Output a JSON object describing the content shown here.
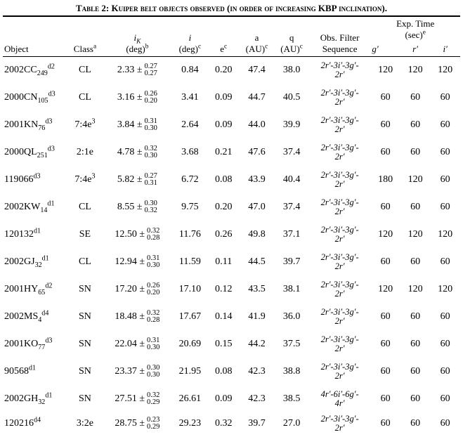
{
  "caption": "Table 2: Kuiper belt objects observed (in order of increasing KBP inclination).",
  "header": {
    "object": "Object",
    "class": "Class",
    "class_sup": "a",
    "ik_label": "i",
    "ik_sub": "K",
    "ik_unit": "(deg)",
    "ik_unit_sup": "b",
    "i_label": "i",
    "i_unit": "(deg)",
    "i_unit_sup": "c",
    "e_label": "e",
    "e_sup": "c",
    "a_label": "a",
    "a_unit": "(AU)",
    "a_unit_sup": "c",
    "q_label": "q",
    "q_unit": "(AU)",
    "q_unit_sup": "c",
    "filter_l1": "Obs. Filter",
    "filter_l2": "Sequence",
    "exp_l1": "Exp. Time",
    "exp_l2": "(sec)",
    "exp_sup": "e",
    "g": "g′",
    "r": "r′",
    "i": "i′"
  },
  "col_widths": [
    "78",
    "42",
    "84",
    "43",
    "38",
    "42",
    "42",
    "74",
    "36",
    "36",
    "36"
  ],
  "rows": [
    {
      "obj": "2002CC",
      "obj_sub": "249",
      "obj_sup": "d2",
      "cls": "CL",
      "cls_sup": "",
      "ik": "2.33",
      "ik_up": "0.27",
      "ik_lo": "0.27",
      "i": "0.84",
      "e": "0.20",
      "a": "47.4",
      "q": "38.0",
      "flt_a": "2r′-3i′-3g′-",
      "flt_b": "2r′",
      "g": "120",
      "r": "120",
      "ii": "120"
    },
    {
      "obj": "2000CN",
      "obj_sub": "105",
      "obj_sup": "d3",
      "cls": "CL",
      "cls_sup": "",
      "ik": "3.16",
      "ik_up": "0.26",
      "ik_lo": "0.20",
      "i": "3.41",
      "e": "0.09",
      "a": "44.7",
      "q": "40.5",
      "flt_a": "2r′-3i′-3g′-",
      "flt_b": "2r′",
      "g": "60",
      "r": "60",
      "ii": "60"
    },
    {
      "obj": "2001KN",
      "obj_sub": "76",
      "obj_sup": "d3",
      "cls": "7:4e",
      "cls_sup": "3",
      "ik": "3.84",
      "ik_up": "0.31",
      "ik_lo": "0.30",
      "i": "2.64",
      "e": "0.09",
      "a": "44.0",
      "q": "39.9",
      "flt_a": "2r′-3i′-3g′-",
      "flt_b": "2r′",
      "g": "60",
      "r": "60",
      "ii": "60"
    },
    {
      "obj": "2000QL",
      "obj_sub": "251",
      "obj_sup": "d3",
      "cls": "2:1e",
      "cls_sup": "",
      "ik": "4.78",
      "ik_up": "0.32",
      "ik_lo": "0.30",
      "i": "3.68",
      "e": "0.21",
      "a": "47.6",
      "q": "37.4",
      "flt_a": "2r′-3i′-3g′-",
      "flt_b": "2r′",
      "g": "60",
      "r": "60",
      "ii": "60"
    },
    {
      "obj": "119066",
      "obj_sub": "",
      "obj_sup": "d3",
      "cls": "7:4e",
      "cls_sup": "3",
      "ik": "5.82",
      "ik_up": "0.27",
      "ik_lo": "0.31",
      "i": "6.72",
      "e": "0.08",
      "a": "43.9",
      "q": "40.4",
      "flt_a": "2r′-3i′-3g′-",
      "flt_b": "2r′",
      "g": "180",
      "r": "120",
      "ii": "60"
    },
    {
      "obj": "2002KW",
      "obj_sub": "14",
      "obj_sup": "d1",
      "cls": "CL",
      "cls_sup": "",
      "ik": "8.55",
      "ik_up": "0.30",
      "ik_lo": "0.32",
      "i": "9.75",
      "e": "0.20",
      "a": "47.0",
      "q": "37.4",
      "flt_a": "2r′-3i′-3g′-",
      "flt_b": "2r′",
      "g": "60",
      "r": "60",
      "ii": "60"
    },
    {
      "obj": "120132",
      "obj_sub": "",
      "obj_sup": "d1",
      "cls": "SE",
      "cls_sup": "",
      "ik": "12.50",
      "ik_up": "0.32",
      "ik_lo": "0.28",
      "i": "11.76",
      "e": "0.26",
      "a": "49.8",
      "q": "37.1",
      "flt_a": "2r′-3i′-3g′-",
      "flt_b": "2r′",
      "g": "120",
      "r": "120",
      "ii": "120"
    },
    {
      "obj": "2002GJ",
      "obj_sub": "32",
      "obj_sup": "d1",
      "cls": "CL",
      "cls_sup": "",
      "ik": "12.94",
      "ik_up": "0.31",
      "ik_lo": "0.30",
      "i": "11.59",
      "e": "0.11",
      "a": "44.5",
      "q": "39.7",
      "flt_a": "2r′-3i′-3g′-",
      "flt_b": "2r′",
      "g": "60",
      "r": "60",
      "ii": "60"
    },
    {
      "obj": "2001HY",
      "obj_sub": "65",
      "obj_sup": "d2",
      "cls": "SN",
      "cls_sup": "",
      "ik": "17.20",
      "ik_up": "0.26",
      "ik_lo": "0.20",
      "i": "17.10",
      "e": "0.12",
      "a": "43.5",
      "q": "38.1",
      "flt_a": "2r′-3i′-3g′-",
      "flt_b": "2r′",
      "g": "120",
      "r": "120",
      "ii": "120"
    },
    {
      "obj": "2002MS",
      "obj_sub": "4",
      "obj_sup": "d4",
      "cls": "SN",
      "cls_sup": "",
      "ik": "18.48",
      "ik_up": "0.32",
      "ik_lo": "0.28",
      "i": "17.67",
      "e": "0.14",
      "a": "41.9",
      "q": "36.0",
      "flt_a": "2r′-3i′-3g′-",
      "flt_b": "2r′",
      "g": "60",
      "r": "60",
      "ii": "60"
    },
    {
      "obj": "2001KO",
      "obj_sub": "77",
      "obj_sup": "d3",
      "cls": "SN",
      "cls_sup": "",
      "ik": "22.04",
      "ik_up": "0.31",
      "ik_lo": "0.30",
      "i": "20.69",
      "e": "0.15",
      "a": "44.2",
      "q": "37.5",
      "flt_a": "2r′-3i′-3g′-",
      "flt_b": "2r′",
      "g": "60",
      "r": "60",
      "ii": "60"
    },
    {
      "obj": "90568",
      "obj_sub": "",
      "obj_sup": "d1",
      "cls": "SN",
      "cls_sup": "",
      "ik": "23.37",
      "ik_up": "0.30",
      "ik_lo": "0.30",
      "i": "21.95",
      "e": "0.08",
      "a": "42.3",
      "q": "38.8",
      "flt_a": "2r′-3i′-3g′-",
      "flt_b": "2r′",
      "g": "60",
      "r": "60",
      "ii": "60"
    },
    {
      "obj": "2002GH",
      "obj_sub": "32",
      "obj_sup": "d1",
      "cls": "SN",
      "cls_sup": "",
      "ik": "27.51",
      "ik_up": "0.32",
      "ik_lo": "0.29",
      "i": "26.61",
      "e": "0.09",
      "a": "42.3",
      "q": "38.5",
      "flt_a": "4r′-6i′-6g′-",
      "flt_b": "4r′",
      "g": "60",
      "r": "60",
      "ii": "60"
    },
    {
      "obj": "120216",
      "obj_sub": "",
      "obj_sup": "d4",
      "cls": "3:2e",
      "cls_sup": "",
      "ik": "28.75",
      "ik_up": "0.23",
      "ik_lo": "0.29",
      "i": "29.23",
      "e": "0.32",
      "a": "39.7",
      "q": "27.0",
      "flt_a": "2r′-3i′-3g′-",
      "flt_b": "2r′",
      "g": "60",
      "r": "60",
      "ii": "60"
    }
  ]
}
